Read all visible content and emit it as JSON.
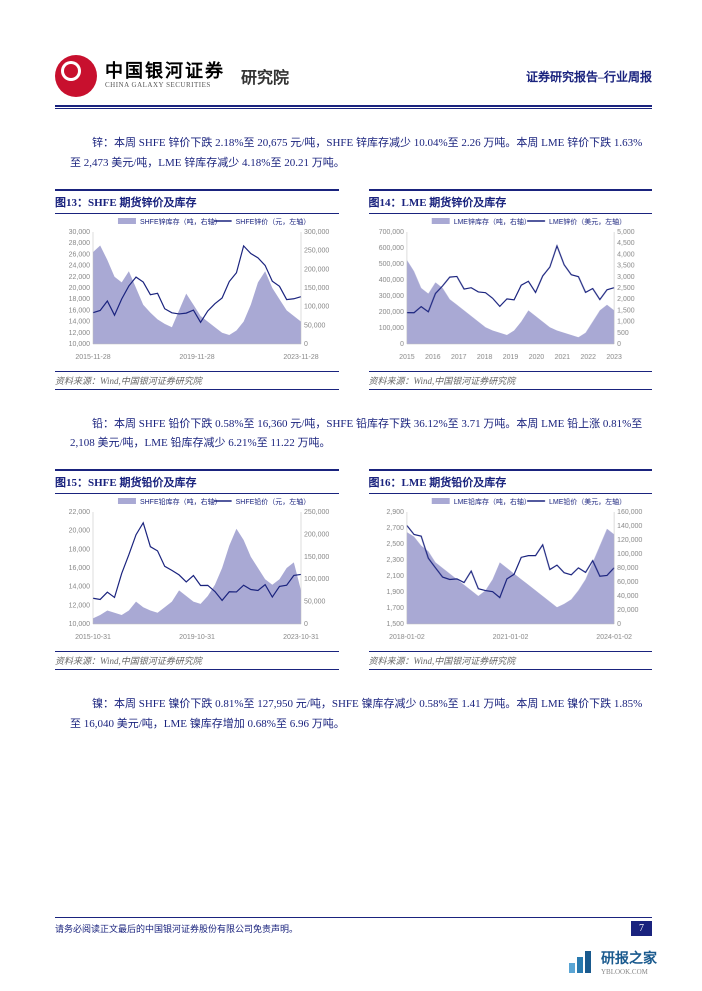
{
  "header": {
    "logo_cn": "中国银河证券",
    "logo_en": "CHINA GALAXY SECURITIES",
    "dept": "研究院",
    "report_label": "证券研究报告–行业周报"
  },
  "text_blocks": {
    "zinc": "锌：本周 SHFE 锌价下跌 2.18%至 20,675 元/吨，SHFE 锌库存减少 10.04%至 2.26 万吨。本周 LME 锌价下跌 1.63%至 2,473 美元/吨，LME 锌库存减少 4.18%至 20.21 万吨。",
    "lead": "铅：本周 SHFE 铅价下跌 0.58%至 16,360 元/吨，SHFE 铅库存下跌 36.12%至 3.71 万吨。本周 LME 铅上涨 0.81%至 2,108 美元/吨，LME 铅库存减少 6.21%至 11.22 万吨。",
    "nickel": "镍：本周 SHFE 镍价下跌 0.81%至 127,950 元/吨，SHFE 镍库存减少 0.58%至 1.41 万吨。本周 LME 镍价下跌 1.85%至 16,040 美元/吨，LME 镍库存增加 0.68%至 6.96 万吨。"
  },
  "charts": {
    "c13": {
      "title": "图13：SHFE 期货锌价及库存",
      "legend": [
        "SHFE锌库存（吨，右轴）",
        "SHFE锌价（元，左轴）"
      ],
      "x_labels": [
        "2015-11-28",
        "2019-11-28",
        "2023-11-28"
      ],
      "left_axis": {
        "min": 10000,
        "max": 30000,
        "step": 2000
      },
      "right_axis": {
        "min": 0,
        "max": 300000,
        "step": 50000
      },
      "area_color": "#a9a9d4",
      "line_color": "#1a237e",
      "area_data": [
        0.82,
        0.88,
        0.75,
        0.6,
        0.55,
        0.65,
        0.5,
        0.35,
        0.28,
        0.22,
        0.18,
        0.15,
        0.3,
        0.45,
        0.35,
        0.25,
        0.2,
        0.15,
        0.1,
        0.08,
        0.12,
        0.2,
        0.35,
        0.55,
        0.65,
        0.5,
        0.4,
        0.3,
        0.25,
        0.2
      ],
      "line_data": [
        0.25,
        0.3,
        0.35,
        0.32,
        0.4,
        0.55,
        0.6,
        0.5,
        0.45,
        0.4,
        0.35,
        0.3,
        0.28,
        0.32,
        0.25,
        0.2,
        0.25,
        0.35,
        0.45,
        0.55,
        0.7,
        0.85,
        0.8,
        0.75,
        0.65,
        0.6,
        0.5,
        0.45,
        0.42,
        0.4
      ]
    },
    "c14": {
      "title": "图14：LME 期货锌价及库存",
      "legend": [
        "LME锌库存（吨，右轴）",
        "LME锌价（美元，左轴）"
      ],
      "x_labels": [
        "2015",
        "2016",
        "2017",
        "2018",
        "2019",
        "2020",
        "2021",
        "2022",
        "2023"
      ],
      "left_axis": {
        "min": 0,
        "max": 700000,
        "step": 100000
      },
      "right_axis": {
        "min": 0,
        "max": 5000,
        "step": 500
      },
      "area_color": "#a9a9d4",
      "line_color": "#1a237e",
      "area_data": [
        0.75,
        0.65,
        0.5,
        0.45,
        0.55,
        0.5,
        0.4,
        0.35,
        0.3,
        0.25,
        0.2,
        0.15,
        0.12,
        0.1,
        0.08,
        0.12,
        0.2,
        0.3,
        0.25,
        0.2,
        0.15,
        0.12,
        0.1,
        0.08,
        0.06,
        0.1,
        0.2,
        0.3,
        0.35,
        0.3
      ],
      "line_data": [
        0.25,
        0.28,
        0.3,
        0.35,
        0.45,
        0.55,
        0.6,
        0.55,
        0.5,
        0.45,
        0.5,
        0.48,
        0.42,
        0.38,
        0.35,
        0.4,
        0.48,
        0.55,
        0.5,
        0.6,
        0.75,
        0.85,
        0.7,
        0.6,
        0.55,
        0.5,
        0.48,
        0.45,
        0.5,
        0.48
      ]
    },
    "c15": {
      "title": "图15：SHFE 期货铅价及库存",
      "legend": [
        "SHFE铅库存（吨，右轴）",
        "SHFE铅价（元，左轴）"
      ],
      "x_labels": [
        "2015-10-31",
        "2019-10-31",
        "2023-10-31"
      ],
      "left_axis": {
        "min": 10000,
        "max": 22000,
        "step": 2000
      },
      "right_axis": {
        "min": 0,
        "max": 250000,
        "step": 50000
      },
      "area_color": "#a9a9d4",
      "line_color": "#1a237e",
      "area_data": [
        0.05,
        0.08,
        0.12,
        0.1,
        0.08,
        0.12,
        0.2,
        0.15,
        0.12,
        0.1,
        0.15,
        0.2,
        0.3,
        0.25,
        0.2,
        0.18,
        0.25,
        0.35,
        0.5,
        0.7,
        0.85,
        0.75,
        0.6,
        0.5,
        0.4,
        0.35,
        0.4,
        0.5,
        0.55,
        0.3
      ],
      "line_data": [
        0.2,
        0.22,
        0.25,
        0.3,
        0.45,
        0.65,
        0.8,
        0.85,
        0.7,
        0.6,
        0.55,
        0.5,
        0.45,
        0.42,
        0.38,
        0.35,
        0.3,
        0.28,
        0.25,
        0.28,
        0.35,
        0.32,
        0.3,
        0.28,
        0.3,
        0.28,
        0.32,
        0.4,
        0.45,
        0.42
      ]
    },
    "c16": {
      "title": "图16：LME 期货铅价及库存",
      "legend": [
        "LME铅库存（吨，右轴）",
        "LME铅价（美元，左轴）"
      ],
      "x_labels": [
        "2018-01-02",
        "2021-01-02",
        "2024-01-02"
      ],
      "left_axis": {
        "min": 1500,
        "max": 2900,
        "step": 200
      },
      "right_axis": {
        "min": 0,
        "max": 160000,
        "step": 20000
      },
      "area_color": "#a9a9d4",
      "line_color": "#1a237e",
      "area_data": [
        0.82,
        0.78,
        0.7,
        0.65,
        0.55,
        0.5,
        0.45,
        0.4,
        0.35,
        0.3,
        0.25,
        0.3,
        0.4,
        0.55,
        0.5,
        0.45,
        0.4,
        0.35,
        0.3,
        0.25,
        0.2,
        0.15,
        0.18,
        0.22,
        0.3,
        0.4,
        0.55,
        0.7,
        0.85,
        0.8
      ],
      "line_data": [
        0.85,
        0.8,
        0.75,
        0.65,
        0.5,
        0.45,
        0.4,
        0.35,
        0.38,
        0.42,
        0.35,
        0.32,
        0.3,
        0.28,
        0.35,
        0.45,
        0.55,
        0.6,
        0.65,
        0.7,
        0.55,
        0.5,
        0.45,
        0.42,
        0.45,
        0.5,
        0.55,
        0.48,
        0.45,
        0.48
      ]
    }
  },
  "source_text": "资料来源：Wind,中国银河证券研究院",
  "footer": {
    "disclaimer": "请务必阅读正文最后的中国银河证券股份有限公司免责声明。",
    "page": "7"
  },
  "watermark": {
    "name": "研报之家",
    "sub": "YBLOOK.COM"
  },
  "style": {
    "font_tick": 7,
    "font_legend": 7,
    "color_axis": "#888",
    "color_text": "#1a237e"
  }
}
